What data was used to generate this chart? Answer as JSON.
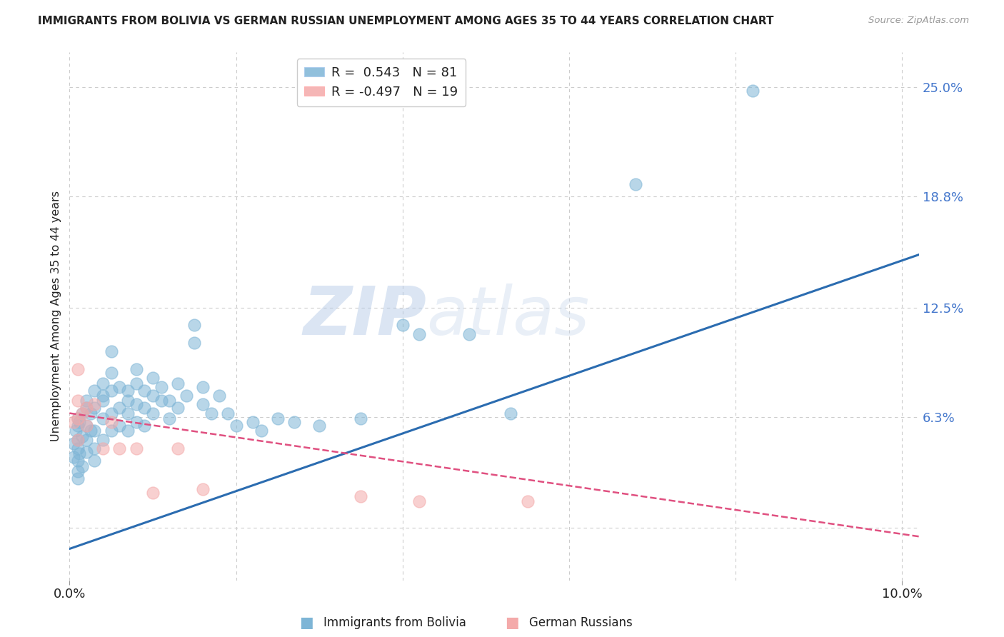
{
  "title": "IMMIGRANTS FROM BOLIVIA VS GERMAN RUSSIAN UNEMPLOYMENT AMONG AGES 35 TO 44 YEARS CORRELATION CHART",
  "source": "Source: ZipAtlas.com",
  "ylabel": "Unemployment Among Ages 35 to 44 years",
  "xlim": [
    0.0,
    0.102
  ],
  "ylim": [
    -0.03,
    0.27
  ],
  "bolivia_R": 0.543,
  "bolivia_N": 81,
  "german_R": -0.497,
  "german_N": 19,
  "bolivia_color": "#7EB5D6",
  "german_color": "#F4AAAA",
  "trend_blue": "#2B6CB0",
  "trend_pink": "#E05080",
  "watermark_zip": "ZIP",
  "watermark_atlas": "atlas",
  "legend_label_bolivia": "Immigrants from Bolivia",
  "legend_label_german": "German Russians",
  "ytick_positions": [
    0.0,
    0.063,
    0.125,
    0.188,
    0.25
  ],
  "ytick_labels": [
    "",
    "6.3%",
    "12.5%",
    "18.8%",
    "25.0%"
  ],
  "bolivia_scatter": [
    [
      0.0005,
      0.04
    ],
    [
      0.0005,
      0.048
    ],
    [
      0.0007,
      0.055
    ],
    [
      0.001,
      0.062
    ],
    [
      0.001,
      0.058
    ],
    [
      0.001,
      0.05
    ],
    [
      0.001,
      0.045
    ],
    [
      0.001,
      0.038
    ],
    [
      0.001,
      0.032
    ],
    [
      0.001,
      0.028
    ],
    [
      0.0012,
      0.06
    ],
    [
      0.0012,
      0.042
    ],
    [
      0.0015,
      0.065
    ],
    [
      0.0015,
      0.052
    ],
    [
      0.0015,
      0.035
    ],
    [
      0.002,
      0.068
    ],
    [
      0.002,
      0.058
    ],
    [
      0.002,
      0.05
    ],
    [
      0.002,
      0.043
    ],
    [
      0.002,
      0.072
    ],
    [
      0.0025,
      0.065
    ],
    [
      0.0025,
      0.055
    ],
    [
      0.003,
      0.078
    ],
    [
      0.003,
      0.068
    ],
    [
      0.003,
      0.055
    ],
    [
      0.003,
      0.045
    ],
    [
      0.003,
      0.038
    ],
    [
      0.004,
      0.082
    ],
    [
      0.004,
      0.072
    ],
    [
      0.004,
      0.062
    ],
    [
      0.004,
      0.05
    ],
    [
      0.004,
      0.075
    ],
    [
      0.005,
      0.078
    ],
    [
      0.005,
      0.065
    ],
    [
      0.005,
      0.055
    ],
    [
      0.005,
      0.088
    ],
    [
      0.005,
      0.1
    ],
    [
      0.006,
      0.08
    ],
    [
      0.006,
      0.068
    ],
    [
      0.006,
      0.058
    ],
    [
      0.007,
      0.078
    ],
    [
      0.007,
      0.065
    ],
    [
      0.007,
      0.072
    ],
    [
      0.007,
      0.055
    ],
    [
      0.008,
      0.082
    ],
    [
      0.008,
      0.07
    ],
    [
      0.008,
      0.06
    ],
    [
      0.008,
      0.09
    ],
    [
      0.009,
      0.078
    ],
    [
      0.009,
      0.068
    ],
    [
      0.009,
      0.058
    ],
    [
      0.01,
      0.085
    ],
    [
      0.01,
      0.075
    ],
    [
      0.01,
      0.065
    ],
    [
      0.011,
      0.072
    ],
    [
      0.011,
      0.08
    ],
    [
      0.012,
      0.072
    ],
    [
      0.012,
      0.062
    ],
    [
      0.013,
      0.082
    ],
    [
      0.013,
      0.068
    ],
    [
      0.014,
      0.075
    ],
    [
      0.015,
      0.115
    ],
    [
      0.015,
      0.105
    ],
    [
      0.016,
      0.08
    ],
    [
      0.016,
      0.07
    ],
    [
      0.017,
      0.065
    ],
    [
      0.018,
      0.075
    ],
    [
      0.019,
      0.065
    ],
    [
      0.02,
      0.058
    ],
    [
      0.022,
      0.06
    ],
    [
      0.023,
      0.055
    ],
    [
      0.025,
      0.062
    ],
    [
      0.027,
      0.06
    ],
    [
      0.03,
      0.058
    ],
    [
      0.035,
      0.062
    ],
    [
      0.04,
      0.115
    ],
    [
      0.042,
      0.11
    ],
    [
      0.048,
      0.11
    ],
    [
      0.053,
      0.065
    ],
    [
      0.068,
      0.195
    ],
    [
      0.082,
      0.248
    ]
  ],
  "german_scatter": [
    [
      0.0005,
      0.06
    ],
    [
      0.001,
      0.072
    ],
    [
      0.001,
      0.062
    ],
    [
      0.001,
      0.05
    ],
    [
      0.001,
      0.09
    ],
    [
      0.0015,
      0.065
    ],
    [
      0.002,
      0.068
    ],
    [
      0.002,
      0.058
    ],
    [
      0.003,
      0.07
    ],
    [
      0.004,
      0.045
    ],
    [
      0.005,
      0.06
    ],
    [
      0.006,
      0.045
    ],
    [
      0.008,
      0.045
    ],
    [
      0.01,
      0.02
    ],
    [
      0.013,
      0.045
    ],
    [
      0.016,
      0.022
    ],
    [
      0.035,
      0.018
    ],
    [
      0.042,
      0.015
    ],
    [
      0.055,
      0.015
    ]
  ],
  "bolivia_trend_x": [
    0.0,
    0.102
  ],
  "bolivia_trend_y": [
    -0.012,
    0.155
  ],
  "german_trend_x": [
    0.0,
    0.102
  ],
  "german_trend_y": [
    0.065,
    -0.005
  ],
  "grid_color": "#CCCCCC",
  "bg_color": "#FFFFFF",
  "title_color": "#222222",
  "right_tick_color": "#4477CC",
  "figsize": [
    14.06,
    8.92
  ],
  "dpi": 100
}
